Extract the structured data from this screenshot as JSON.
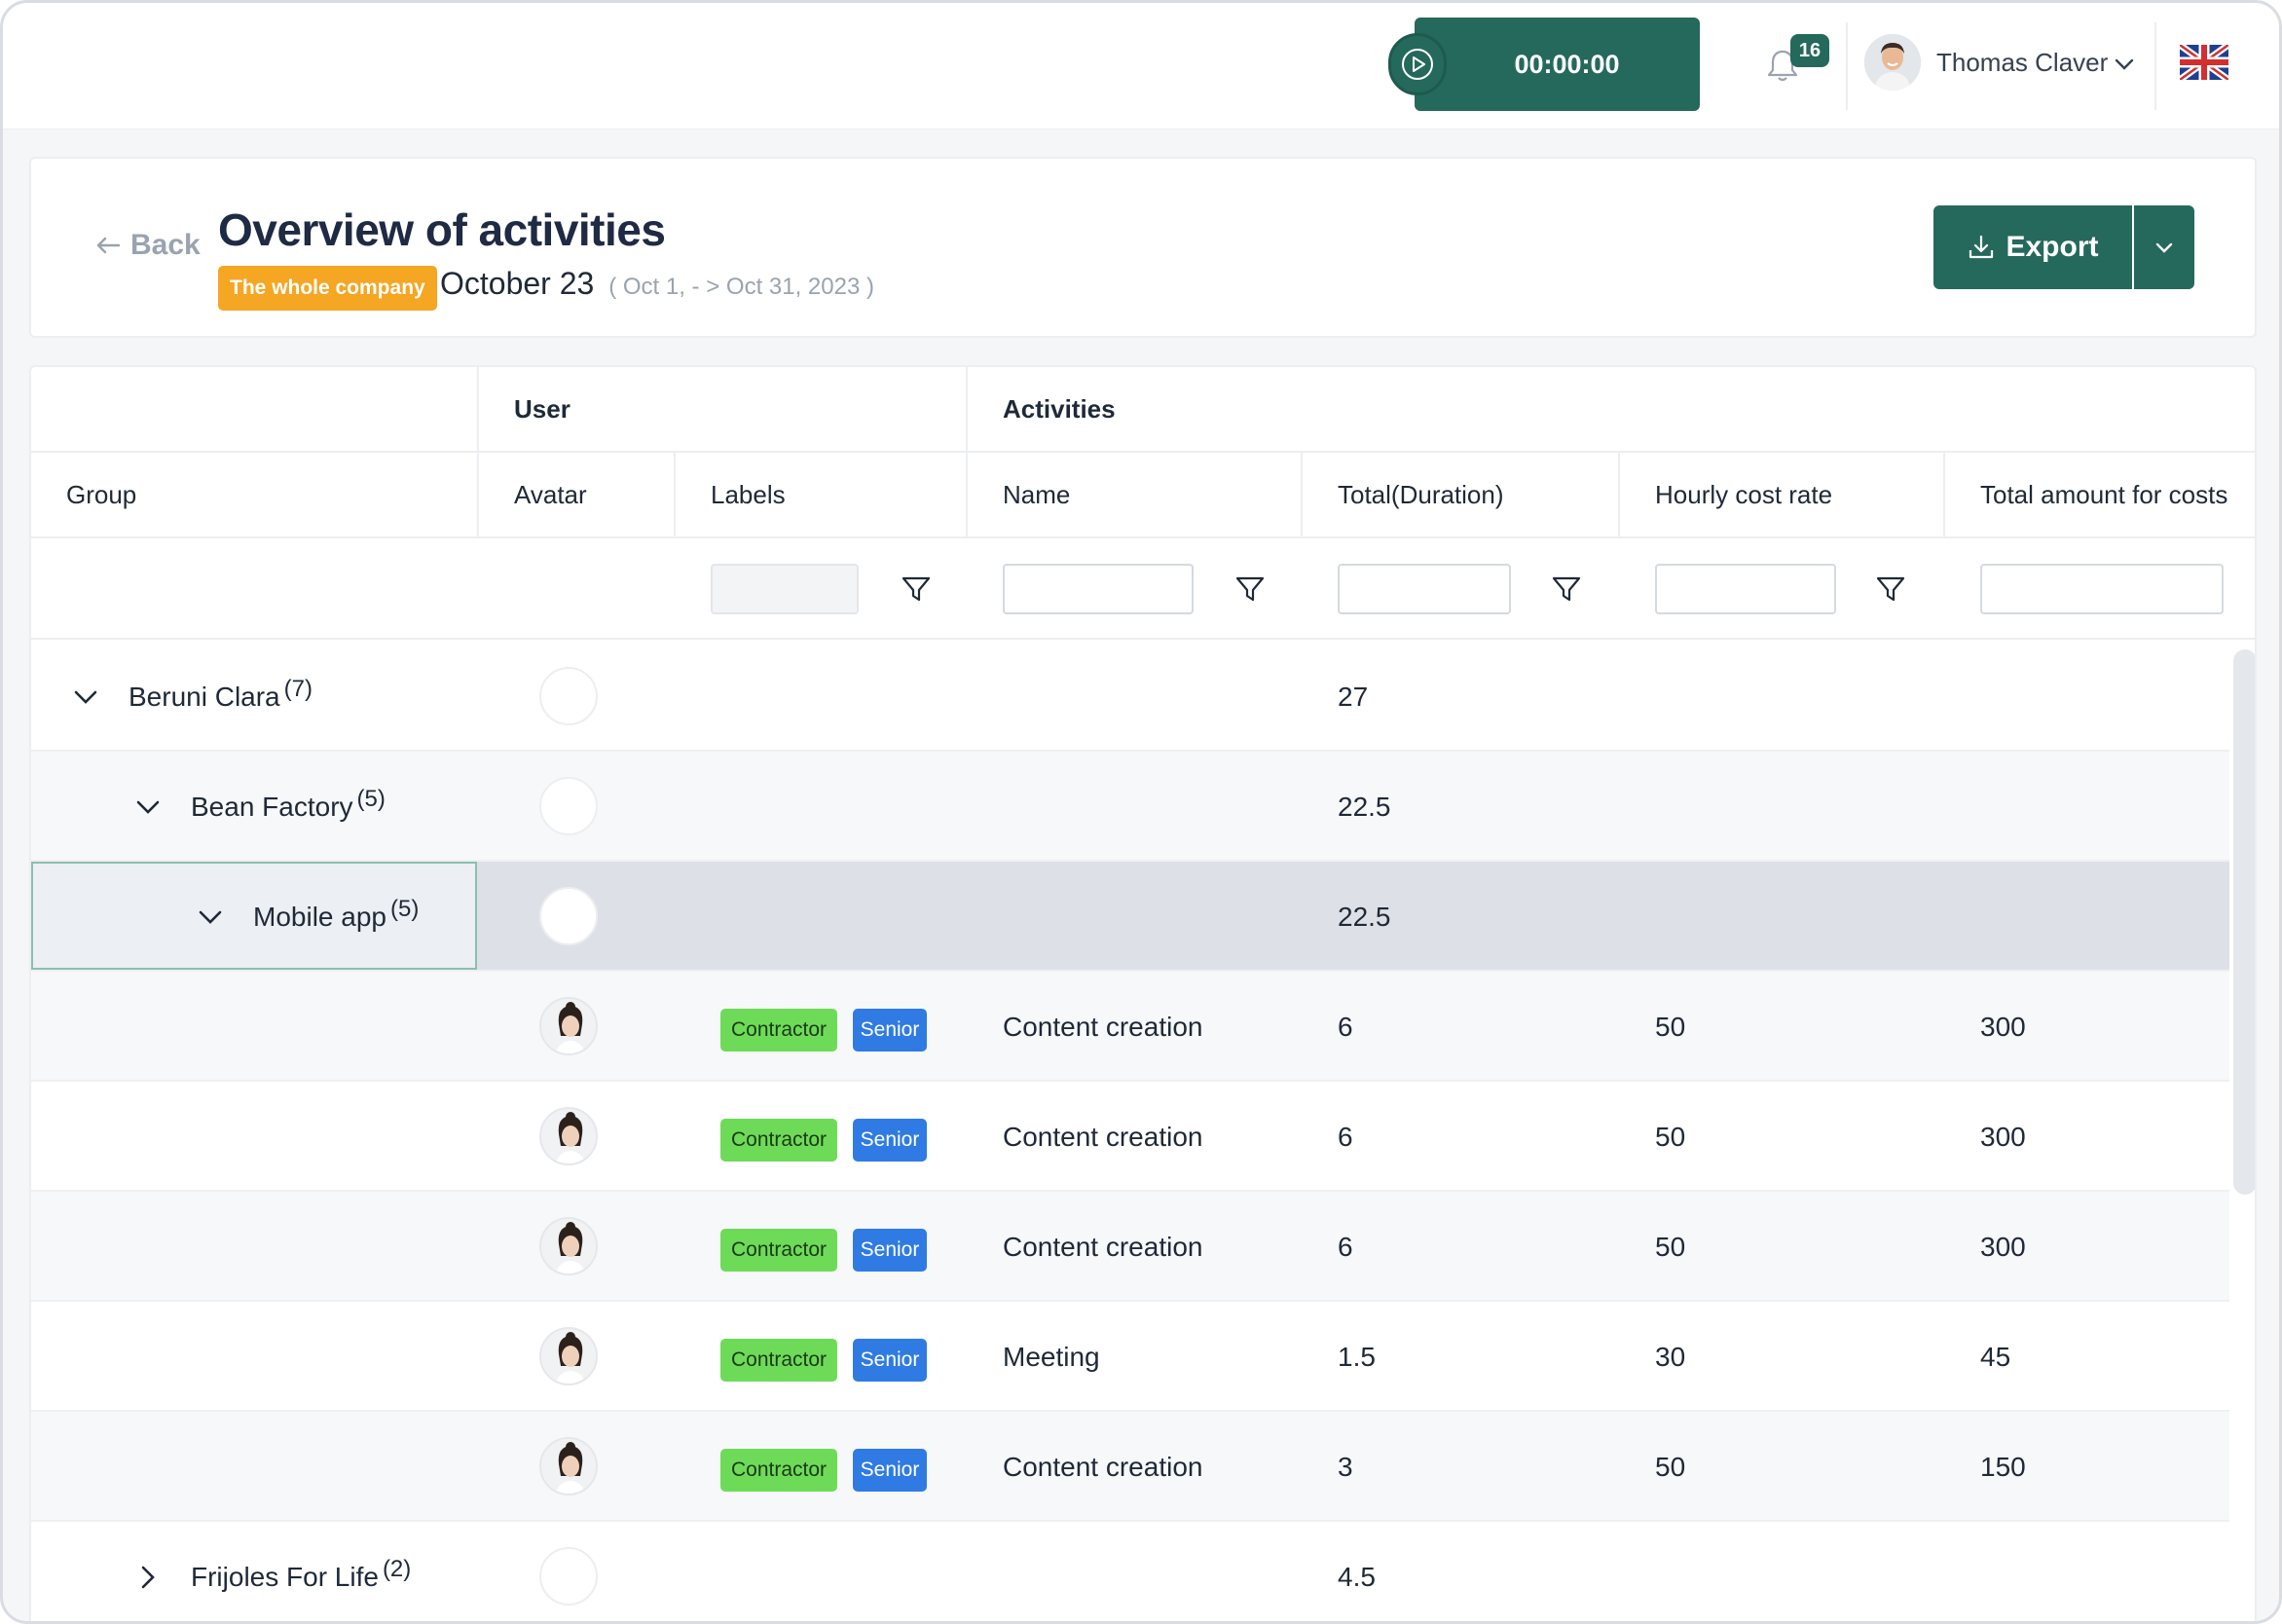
{
  "topbar": {
    "timer": "00:00:00",
    "notifications_count": "16",
    "user_name": "Thomas Claver",
    "language_icon": "uk-flag-icon"
  },
  "header": {
    "back_label": "Back",
    "title": "Overview of activities",
    "scope_badge": "The whole company",
    "period": "October 23",
    "period_range": "( Oct 1, - > Oct 31, 2023 )",
    "export_label": "Export"
  },
  "table": {
    "group_headers": {
      "user": "User",
      "activities": "Activities"
    },
    "columns": {
      "group": "Group",
      "avatar": "Avatar",
      "labels": "Labels",
      "name": "Name",
      "total_duration": "Total(Duration)",
      "hourly_cost_rate": "Hourly cost rate",
      "total_costs": "Total amount for costs"
    },
    "groups": [
      {
        "name": "Beruni Clara",
        "count": "(7)",
        "total": "27",
        "expanded": true,
        "level": 0
      },
      {
        "name": "Bean Factory",
        "count": "(5)",
        "total": "22.5",
        "expanded": true,
        "level": 1
      },
      {
        "name": "Mobile app",
        "count": "(5)",
        "total": "22.5",
        "expanded": true,
        "level": 2,
        "selected": true
      }
    ],
    "rows": [
      {
        "labels": [
          "Contractor",
          "Senior"
        ],
        "name": "Content creation",
        "duration": "6",
        "rate": "50",
        "cost": "300"
      },
      {
        "labels": [
          "Contractor",
          "Senior"
        ],
        "name": "Content creation",
        "duration": "6",
        "rate": "50",
        "cost": "300"
      },
      {
        "labels": [
          "Contractor",
          "Senior"
        ],
        "name": "Content creation",
        "duration": "6",
        "rate": "50",
        "cost": "300"
      },
      {
        "labels": [
          "Contractor",
          "Senior"
        ],
        "name": "Meeting",
        "duration": "1.5",
        "rate": "30",
        "cost": "45"
      },
      {
        "labels": [
          "Contractor",
          "Senior"
        ],
        "name": "Content creation",
        "duration": "3",
        "rate": "50",
        "cost": "150"
      }
    ],
    "collapsed_group": {
      "name": "Frijoles For Life",
      "count": "(2)",
      "total": "4.5"
    }
  },
  "colors": {
    "primary": "#25695c",
    "badge_orange": "#f5a623",
    "tag_green": "#6edb58",
    "tag_blue": "#2f7be3"
  }
}
